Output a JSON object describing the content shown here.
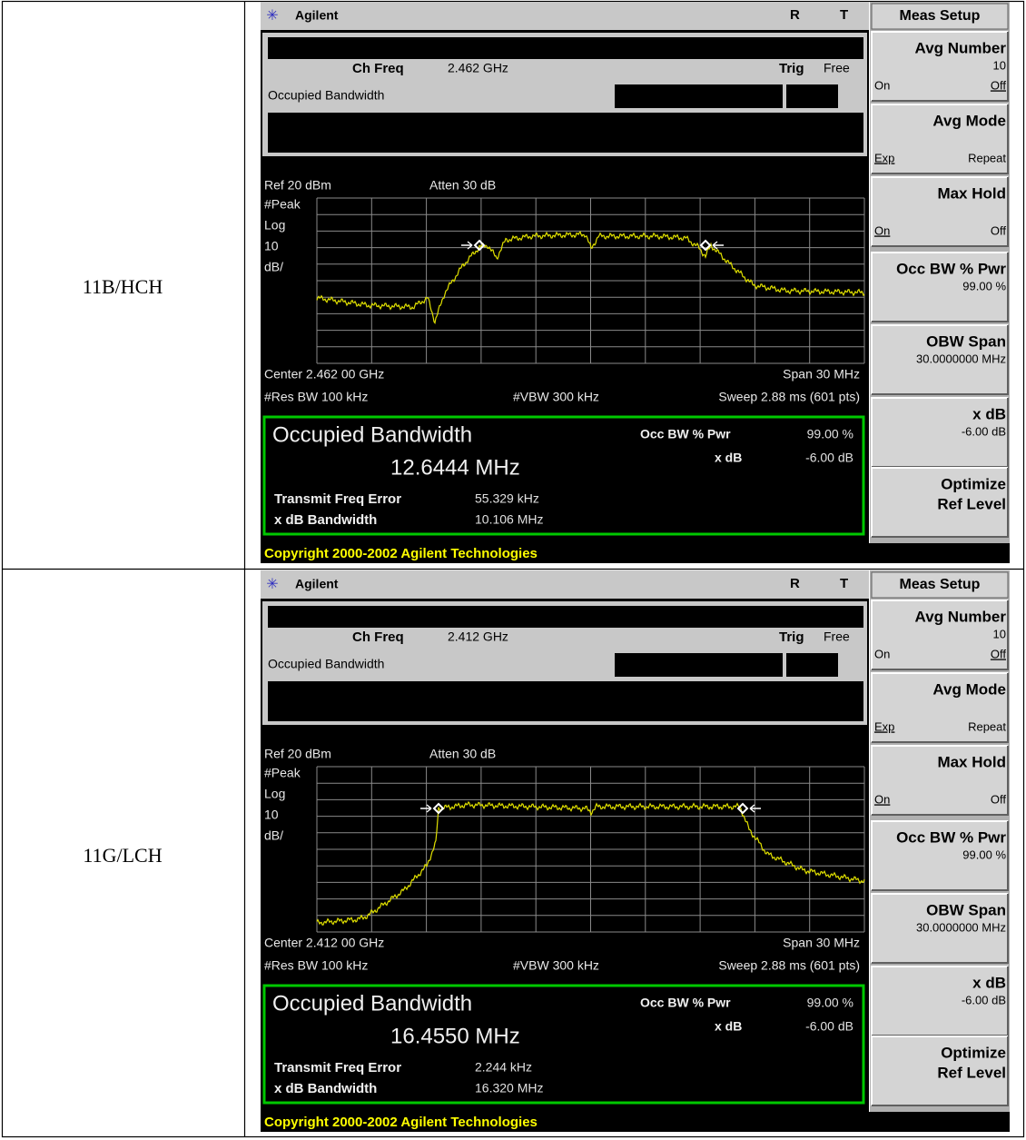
{
  "table": {
    "rows": [
      {
        "label": "11B/HCH",
        "screen": {
          "brand": "Agilent",
          "status_r": "R",
          "status_t": "T",
          "ch_freq_label": "Ch Freq",
          "ch_freq": "2.462 GHz",
          "trig_label": "Trig",
          "trig": "Free",
          "mode": "Occupied Bandwidth",
          "ref": "Ref 20 dBm",
          "atten": "Atten 30 dB",
          "scale_labels": [
            "#Peak",
            "Log",
            "10",
            "dB/"
          ],
          "center": "Center 2.462 00 GHz",
          "span": "Span 30 MHz",
          "res_bw": "#Res BW 100 kHz",
          "vbw": "#VBW 300 kHz",
          "sweep": "Sweep 2.88 ms (601 pts)",
          "result_title": "Occupied Bandwidth",
          "result_value": "12.6444 MHz",
          "occ_label": "Occ BW % Pwr",
          "occ_value": "99.00 %",
          "xdb_label": "x dB",
          "xdb_value": "-6.00 dB",
          "tfe_label": "Transmit Freq Error",
          "tfe_value": "55.329 kHz",
          "xbw_label": "x dB Bandwidth",
          "xbw_value": "10.106 MHz",
          "copyright": "Copyright 2000-2002 Agilent Technologies",
          "menu_title": "Meas Setup",
          "softkeys": [
            {
              "title": [
                "Avg Number"
              ],
              "value": "10",
              "left": "On",
              "right": "Off"
            },
            {
              "title": [
                "Avg Mode"
              ],
              "left": "Exp",
              "right": "Repeat"
            },
            {
              "title": [
                "Max Hold"
              ],
              "left": "On",
              "right": "Off"
            },
            {
              "title": [
                "Occ BW % Pwr"
              ],
              "value": "99.00 %"
            },
            {
              "title": [
                "OBW Span"
              ],
              "value": "30.0000000 MHz"
            },
            {
              "title": [
                "x dB"
              ],
              "value": "-6.00 dB"
            },
            {
              "title": [
                "Optimize",
                "Ref Level"
              ]
            }
          ]
        }
      },
      {
        "label": "11G/LCH",
        "screen": {
          "brand": "Agilent",
          "status_r": "R",
          "status_t": "T",
          "ch_freq_label": "Ch Freq",
          "ch_freq": "2.412 GHz",
          "trig_label": "Trig",
          "trig": "Free",
          "mode": "Occupied Bandwidth",
          "ref": "Ref 20 dBm",
          "atten": "Atten 30 dB",
          "scale_labels": [
            "#Peak",
            "Log",
            "10",
            "dB/"
          ],
          "center": "Center 2.412 00 GHz",
          "span": "Span 30 MHz",
          "res_bw": "#Res BW 100 kHz",
          "vbw": "#VBW 300 kHz",
          "sweep": "Sweep 2.88 ms (601 pts)",
          "result_title": "Occupied Bandwidth",
          "result_value": "16.4550 MHz",
          "occ_label": "Occ BW % Pwr",
          "occ_value": "99.00 %",
          "xdb_label": "x dB",
          "xdb_value": "-6.00 dB",
          "tfe_label": "Transmit Freq Error",
          "tfe_value": "2.244 kHz",
          "xbw_label": "x dB Bandwidth",
          "xbw_value": "16.320 MHz",
          "copyright": "Copyright 2000-2002 Agilent Technologies",
          "menu_title": "Meas Setup",
          "softkeys": [
            {
              "title": [
                "Avg Number"
              ],
              "value": "10",
              "left": "On",
              "right": "Off"
            },
            {
              "title": [
                "Avg Mode"
              ],
              "left": "Exp",
              "right": "Repeat"
            },
            {
              "title": [
                "Max Hold"
              ],
              "left": "On",
              "right": "Off"
            },
            {
              "title": [
                "Occ BW % Pwr"
              ],
              "value": "99.00 %"
            },
            {
              "title": [
                "OBW Span"
              ],
              "value": "30.0000000 MHz"
            },
            {
              "title": [
                "x dB"
              ],
              "value": "-6.00 dB"
            },
            {
              "title": [
                "Optimize",
                "Ref Level"
              ]
            }
          ]
        }
      }
    ]
  }
}
